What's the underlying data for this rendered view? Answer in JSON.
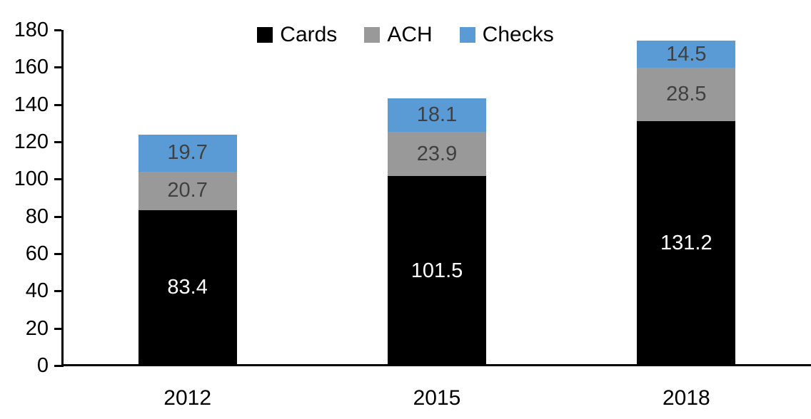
{
  "chart_data": {
    "type": "bar",
    "stacked": true,
    "title": "",
    "xlabel": "",
    "ylabel": "",
    "categories": [
      "2012",
      "2015",
      "2018"
    ],
    "series": [
      {
        "name": "Cards",
        "color": "#000000",
        "label_color": "#ffffff",
        "values": [
          83.4,
          101.5,
          131.2
        ]
      },
      {
        "name": "ACH",
        "color": "#999999",
        "label_color": "#404040",
        "values": [
          20.7,
          23.9,
          28.5
        ]
      },
      {
        "name": "Checks",
        "color": "#5B9BD5",
        "label_color": "#404040",
        "values": [
          19.7,
          18.1,
          14.5
        ]
      }
    ],
    "ylim": [
      0,
      180
    ],
    "ytick_step": 20,
    "ytick_labels": [
      "0",
      "20",
      "40",
      "60",
      "80",
      "100",
      "120",
      "140",
      "160",
      "180"
    ],
    "legend_position": "top",
    "legend_entries": [
      "Cards",
      "ACH",
      "Checks"
    ],
    "grid": false,
    "axis_color": "#000000",
    "data_labels_shown": true
  }
}
